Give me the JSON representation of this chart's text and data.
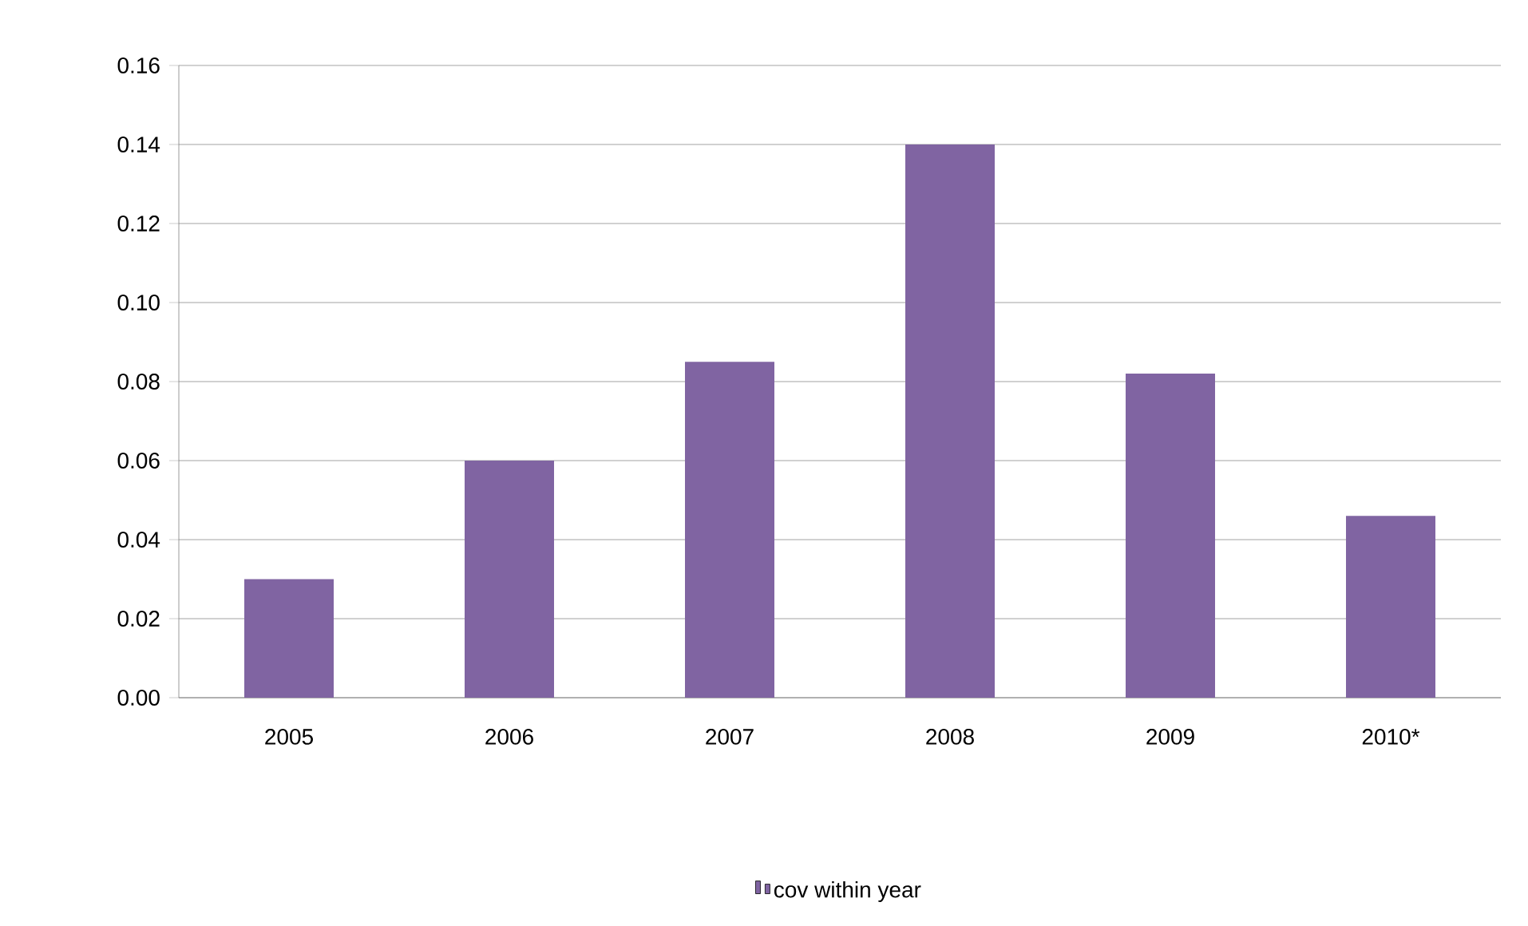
{
  "chart_data": {
    "type": "bar",
    "categories": [
      "2005",
      "2006",
      "2007",
      "2008",
      "2009",
      "2010*"
    ],
    "series": [
      {
        "name": "cov within year",
        "color": "#8064a2",
        "values": [
          0.03,
          0.06,
          0.085,
          0.14,
          0.082,
          0.046
        ]
      }
    ],
    "ylim": [
      0,
      0.16
    ],
    "yticks": [
      {
        "value": 0,
        "label": "0.00"
      },
      {
        "value": 0.02,
        "label": "0.02"
      },
      {
        "value": 0.04,
        "label": "0.04"
      },
      {
        "value": 0.06,
        "label": "0.06"
      },
      {
        "value": 0.08,
        "label": "0.08"
      },
      {
        "value": 0.1,
        "label": "0.10"
      },
      {
        "value": 0.12,
        "label": "0.12"
      },
      {
        "value": 0.14,
        "label": "0.14"
      },
      {
        "value": 0.16,
        "label": "0.16"
      }
    ],
    "grid": "y",
    "legend": "bottom"
  }
}
